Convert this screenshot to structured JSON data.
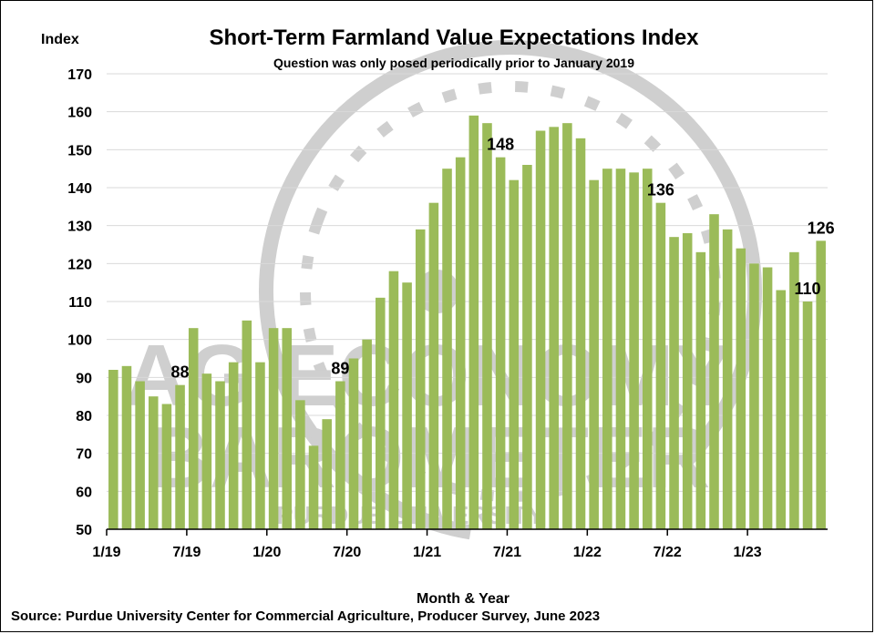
{
  "chart_data": {
    "type": "bar",
    "title": "Short-Term Farmland Value Expectations Index",
    "subtitle": "Question was only posed periodically prior to January 2019",
    "ylabel": "Index",
    "xlabel": "Month & Year",
    "source": "Source: Purdue University Center for Commercial Agriculture, Producer Survey, June 2023",
    "ylim": [
      50,
      170
    ],
    "yticks": [
      50,
      60,
      70,
      80,
      90,
      100,
      110,
      120,
      130,
      140,
      150,
      160,
      170
    ],
    "xtick_labels": [
      {
        "index": 0,
        "label": "1/19"
      },
      {
        "index": 6,
        "label": "7/19"
      },
      {
        "index": 12,
        "label": "1/20"
      },
      {
        "index": 18,
        "label": "7/20"
      },
      {
        "index": 24,
        "label": "1/21"
      },
      {
        "index": 30,
        "label": "7/21"
      },
      {
        "index": 36,
        "label": "1/22"
      },
      {
        "index": 42,
        "label": "7/22"
      },
      {
        "index": 48,
        "label": "1/23"
      }
    ],
    "categories": [
      "1/19",
      "2/19",
      "3/19",
      "4/19",
      "5/19",
      "6/19",
      "7/19",
      "8/19",
      "9/19",
      "10/19",
      "11/19",
      "12/19",
      "1/20",
      "2/20",
      "3/20",
      "4/20",
      "5/20",
      "6/20",
      "7/20",
      "8/20",
      "9/20",
      "10/20",
      "11/20",
      "12/20",
      "1/21",
      "2/21",
      "3/21",
      "4/21",
      "5/21",
      "6/21",
      "7/21",
      "8/21",
      "9/21",
      "10/21",
      "11/21",
      "12/21",
      "1/22",
      "2/22",
      "3/22",
      "4/22",
      "5/22",
      "6/22",
      "7/22",
      "8/22",
      "9/22",
      "10/22",
      "11/22",
      "12/22",
      "1/23",
      "2/23",
      "3/23",
      "4/23",
      "5/23",
      "6/23"
    ],
    "values": [
      92,
      93,
      89,
      85,
      83,
      88,
      103,
      91,
      89,
      94,
      105,
      94,
      103,
      103,
      84,
      72,
      79,
      89,
      95,
      100,
      111,
      118,
      115,
      129,
      136,
      145,
      148,
      159,
      157,
      148,
      142,
      146,
      155,
      156,
      157,
      153,
      142,
      145,
      145,
      144,
      145,
      136,
      127,
      128,
      123,
      133,
      129,
      124,
      120,
      119,
      113,
      123,
      110,
      126
    ],
    "data_labels": [
      {
        "index": 5,
        "text": "88"
      },
      {
        "index": 17,
        "text": "89"
      },
      {
        "index": 29,
        "text": "148"
      },
      {
        "index": 41,
        "text": "136"
      },
      {
        "index": 52,
        "text": "110"
      },
      {
        "index": 53,
        "text": "126"
      }
    ],
    "bar_color": "#9bbb59",
    "grid": true,
    "gridline_color": "#d9d9d9",
    "watermark": {
      "lines": [
        "AG ECONOMY",
        "BAROMETER",
        "PURDUE UNIVERSITY"
      ],
      "color": "#cfcfcf"
    }
  }
}
